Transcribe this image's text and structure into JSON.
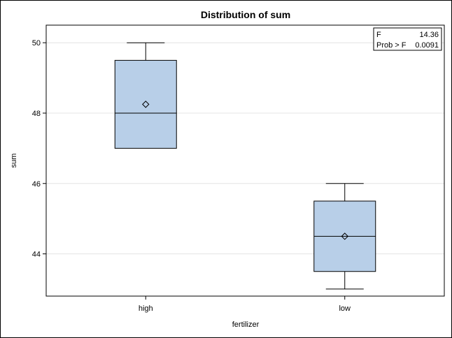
{
  "chart_data": {
    "type": "box",
    "title": "Distribution of sum",
    "xlabel": "fertilizer",
    "ylabel": "sum",
    "ylim": [
      42.8,
      50.5
    ],
    "y_ticks": [
      44,
      46,
      48,
      50
    ],
    "y_tick_labels": [
      "44",
      "46",
      "48",
      "50"
    ],
    "grid": true,
    "categories": [
      "high",
      "low"
    ],
    "boxes": [
      {
        "category": "high",
        "min": 47,
        "q1": 47,
        "median": 48,
        "q3": 49.5,
        "max": 50,
        "mean": 48.25
      },
      {
        "category": "low",
        "min": 43,
        "q1": 43.5,
        "median": 44.5,
        "q3": 45.5,
        "max": 46,
        "mean": 44.5
      }
    ],
    "inset": {
      "legend_position": "top-right",
      "rows": [
        {
          "label": "F",
          "value": "14.36"
        },
        {
          "label": "Prob > F",
          "value": "0.0091"
        }
      ]
    },
    "colors": {
      "box_fill": "#b8cfe8",
      "box_stroke": "#000000",
      "grid": "#e4e4e4",
      "frame": "#000000"
    }
  }
}
